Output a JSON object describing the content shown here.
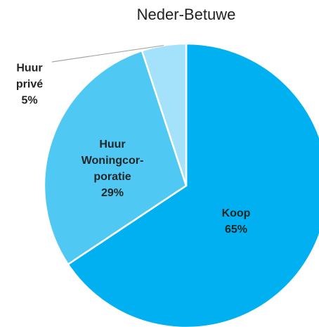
{
  "chart_data": {
    "type": "pie",
    "title": "Neder-Betuwe",
    "categories": [
      "Koop",
      "Huur Woningcor­poratie",
      "Huur privé"
    ],
    "values": [
      65,
      29,
      5
    ],
    "value_labels": [
      "65%",
      "29%",
      "5%"
    ],
    "colors": [
      "#00b0f0",
      "#4fc8f4",
      "#a3e2fa"
    ]
  }
}
